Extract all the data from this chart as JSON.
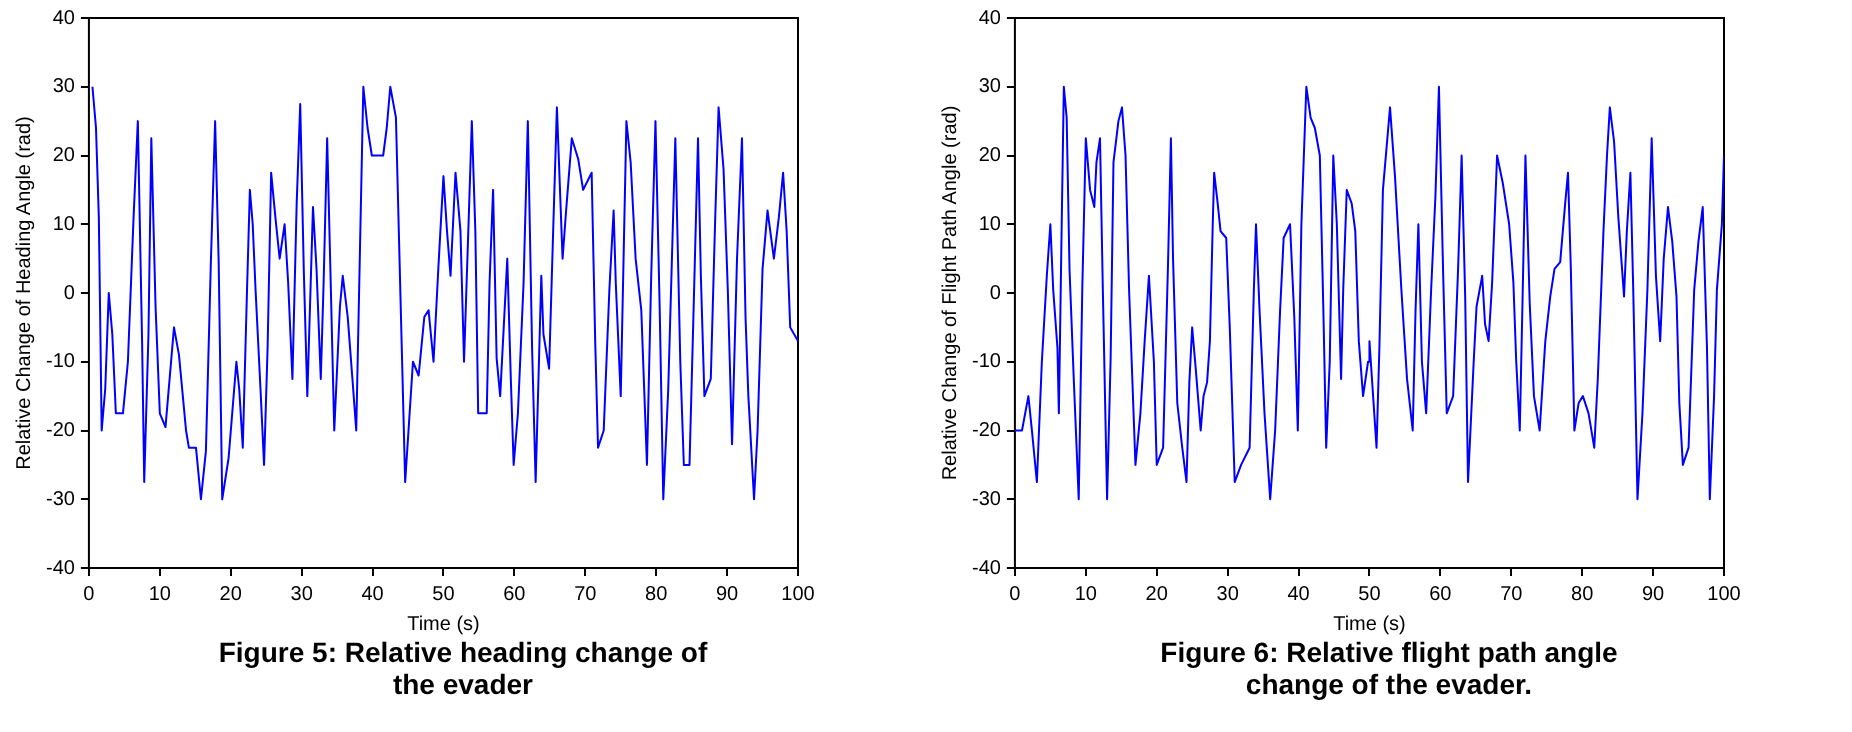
{
  "chart_data": [
    {
      "type": "line",
      "title": "Figure 5: Relative heading change of the evader",
      "xlabel": "Time (s)",
      "ylabel": "Relative Change of Heading Angle (rad)",
      "xlim": [
        0,
        100
      ],
      "xticks": [
        0,
        10,
        20,
        30,
        40,
        50,
        60,
        70,
        80,
        90,
        100
      ],
      "ylim": [
        -40,
        40
      ],
      "yticks": [
        -40,
        -30,
        -20,
        -10,
        0,
        10,
        20,
        30,
        40
      ],
      "grid": false,
      "legend": false,
      "marker": "none",
      "line_style": "solid",
      "series": [
        {
          "color": "#0000ff",
          "x": [
            0.5,
            1,
            1.4,
            1.8,
            2.3,
            2.8,
            3.3,
            3.8,
            4.8,
            5.5,
            6.3,
            6.9,
            7.5,
            7.8,
            8.4,
            8.8,
            9.4,
            10,
            10.8,
            12,
            12.7,
            13.7,
            14.1,
            15.1,
            15.8,
            16.5,
            17.2,
            17.8,
            18.3,
            18.8,
            19.7,
            20.8,
            21.2,
            21.7,
            22.3,
            22.7,
            23.1,
            23.5,
            24.2,
            24.7,
            25.2,
            25.7,
            26.3,
            26.9,
            27.6,
            28.1,
            28.7,
            29.3,
            29.8,
            30.3,
            30.8,
            31.6,
            32.1,
            32.7,
            33.1,
            33.6,
            34.1,
            34.6,
            35.4,
            35.8,
            36.5,
            37.2,
            37.7,
            38.1,
            38.7,
            39.3,
            39.9,
            41.5,
            42,
            42.5,
            43.3,
            44.6,
            45.7,
            46.5,
            47.3,
            47.9,
            48.6,
            49.3,
            50,
            50.5,
            51,
            51.7,
            52.4,
            52.9,
            53.6,
            54,
            54.5,
            54.9,
            56.1,
            56.5,
            57,
            57.5,
            58,
            59,
            59.5,
            59.9,
            60.5,
            61.3,
            61.9,
            62.5,
            63,
            63.8,
            64.1,
            64.9,
            65.5,
            66,
            66.8,
            67.3,
            68.1,
            69,
            69.7,
            70.9,
            71.4,
            71.8,
            72.6,
            73.4,
            74,
            74.3,
            75,
            75.8,
            76.4,
            77.1,
            77.9,
            78.7,
            79.3,
            79.9,
            80.5,
            81,
            81.7,
            82.7,
            83.4,
            83.9,
            84.7,
            85.3,
            85.9,
            86.3,
            86.8,
            87.7,
            88.3,
            88.8,
            89.5,
            90.1,
            90.7,
            91.4,
            92.1,
            92.6,
            93,
            93.8,
            94.3,
            95,
            95.7,
            96.6,
            97.3,
            97.9,
            98.4,
            98.9,
            100
          ],
          "values": [
            30,
            24,
            11,
            -20,
            -14,
            0,
            -6,
            -17.5,
            -17.5,
            -10,
            11,
            25,
            -7,
            -27.5,
            -6,
            22.5,
            -2,
            -17.5,
            -19.5,
            -5,
            -9,
            -20,
            -22.5,
            -22.5,
            -30,
            -23,
            4.5,
            25,
            4.5,
            -30,
            -24,
            -10,
            -14,
            -22.5,
            0.5,
            15,
            10,
            0.5,
            -14,
            -25,
            -8,
            17.5,
            11,
            5,
            10,
            1.5,
            -12.5,
            13,
            27.5,
            3.5,
            -15,
            12.5,
            3.5,
            -12.5,
            1.5,
            22.5,
            1.5,
            -20,
            -2,
            2.5,
            -3.5,
            -13,
            -20,
            0,
            30,
            24,
            20,
            20,
            24,
            30,
            25.5,
            -27.5,
            -10,
            -12,
            -3.5,
            -2.5,
            -10,
            4,
            17,
            9,
            2.5,
            17.5,
            9,
            -10,
            12,
            25,
            9,
            -17.5,
            -17.5,
            1.5,
            15,
            -9.5,
            -15,
            5,
            -12.5,
            -25,
            -17.5,
            1.5,
            25,
            -8,
            -27.5,
            2.5,
            -6,
            -11,
            10,
            27,
            5,
            12,
            22.5,
            19.5,
            15,
            17.5,
            -7,
            -22.5,
            -20,
            0.5,
            12,
            1.5,
            -15,
            25,
            19,
            5,
            -2.5,
            -25,
            2.5,
            25,
            -2.5,
            -30,
            -14,
            22.5,
            -10,
            -25,
            -25,
            -1.5,
            22.5,
            2.5,
            -15,
            -12.5,
            10,
            27,
            18,
            0.5,
            -22,
            5,
            22.5,
            -3.5,
            -15,
            -30,
            -20,
            3.5,
            12,
            5,
            11,
            17.5,
            9,
            -5,
            -7
          ]
        }
      ]
    },
    {
      "type": "line",
      "title": "Figure 6: Relative flight path angle change of the evader.",
      "xlabel": "Time (s)",
      "ylabel": "Relative Change of Flight Path Angle (rad)",
      "xlim": [
        0,
        100
      ],
      "xticks": [
        0,
        10,
        20,
        30,
        40,
        50,
        60,
        70,
        80,
        90,
        100
      ],
      "ylim": [
        -40,
        40
      ],
      "yticks": [
        -40,
        -30,
        -20,
        -10,
        0,
        10,
        20,
        30,
        40
      ],
      "grid": false,
      "legend": false,
      "marker": "none",
      "line_style": "solid",
      "series": [
        {
          "color": "#0000ff",
          "x": [
            0,
            1,
            1.9,
            2.4,
            3.1,
            3.8,
            4.5,
            5,
            5.4,
            6,
            6.2,
            6.6,
            6.9,
            7.3,
            7.7,
            8.3,
            9,
            9.5,
            10,
            10.6,
            11.2,
            11.5,
            12,
            12.4,
            13,
            13.5,
            13.9,
            14.6,
            15.1,
            15.6,
            16.1,
            17,
            17.7,
            18.3,
            18.9,
            19.6,
            20,
            20.9,
            21.6,
            22,
            22.3,
            22.9,
            23.6,
            24.2,
            24.6,
            25,
            25.5,
            26.2,
            26.6,
            27.1,
            27.5,
            27.9,
            28.1,
            28.6,
            29,
            29.8,
            30.3,
            31,
            31.9,
            33.1,
            33.7,
            34,
            34.5,
            35.2,
            36,
            36.7,
            37.4,
            37.9,
            38.8,
            39.4,
            39.9,
            40.4,
            41.1,
            41.7,
            42.3,
            43,
            43.5,
            43.9,
            44.4,
            44.9,
            45.4,
            46,
            46.3,
            46.8,
            47.5,
            48,
            48.5,
            49.1,
            49.8,
            50,
            51,
            51.4,
            51.9,
            52.9,
            53.6,
            54.5,
            55.3,
            56.1,
            56.5,
            56.9,
            57.4,
            58,
            58.7,
            59.3,
            59.8,
            60.4,
            60.9,
            61.8,
            62.5,
            63,
            63.5,
            63.9,
            64.7,
            65.1,
            65.9,
            66.3,
            66.8,
            67.3,
            68,
            68.8,
            69.7,
            70.3,
            70.7,
            71.2,
            71.6,
            72,
            72.6,
            73.2,
            74,
            74.8,
            75.5,
            76.1,
            76.9,
            77.6,
            78,
            78.4,
            78.9,
            79.5,
            80.1,
            80.9,
            81.7,
            82.2,
            83,
            83.5,
            83.9,
            84.5,
            85.1,
            85.9,
            86.3,
            86.8,
            87.2,
            87.8,
            88.5,
            89.2,
            89.8,
            90.4,
            91,
            91.5,
            92.1,
            92.7,
            93.3,
            93.7,
            94.2,
            95,
            95.8,
            96.4,
            97,
            97.6,
            98,
            98.6,
            99,
            99.7,
            100
          ],
          "values": [
            -20,
            -20,
            -15,
            -20,
            -27.5,
            -10,
            2.5,
            10,
            0.5,
            -8,
            -17.5,
            10,
            30,
            25.5,
            3.5,
            -12.5,
            -30,
            0.5,
            22.5,
            15,
            12.5,
            19,
            22.5,
            0.5,
            -30,
            -9.5,
            19,
            25,
            27,
            20,
            0.5,
            -25,
            -17.5,
            -7,
            2.5,
            -10,
            -25,
            -22.5,
            4.5,
            22.5,
            5,
            -16,
            -22.5,
            -27.5,
            -13,
            -5,
            -11,
            -20,
            -15,
            -13,
            -7,
            10,
            17.5,
            13,
            9,
            8,
            -5,
            -27.5,
            -25,
            -22.5,
            0.5,
            10,
            -2.5,
            -17.5,
            -30,
            -20,
            -2.5,
            8,
            10,
            -3.5,
            -20,
            10,
            30,
            25.5,
            24,
            20,
            -2.5,
            -22.5,
            -10,
            20,
            10,
            -12.5,
            0.5,
            15,
            13,
            9,
            -7,
            -15,
            -10,
            -7,
            -22.5,
            -8,
            15,
            27,
            17,
            0.5,
            -12.5,
            -20,
            -2.5,
            10,
            -10,
            -17.5,
            0.5,
            14,
            30,
            2.5,
            -17.5,
            -15,
            3.5,
            20,
            -0.5,
            -27.5,
            -10,
            -2,
            2.5,
            -4.5,
            -7,
            1.5,
            20,
            16,
            10,
            1.5,
            -10,
            -20,
            -0.5,
            20,
            -1.5,
            -15,
            -20,
            -7,
            -0.5,
            3.5,
            4.5,
            13,
            17.5,
            3.5,
            -20,
            -16,
            -15,
            -17.5,
            -22.5,
            -12.5,
            9,
            20,
            27,
            22,
            11,
            -0.5,
            9,
            17.5,
            0.5,
            -30,
            -17.5,
            0.5,
            22.5,
            2.5,
            -7,
            5,
            12.5,
            7.5,
            -0.5,
            -16,
            -25,
            -22.5,
            0.5,
            7.5,
            12.5,
            -8,
            -30,
            -15,
            0.5,
            10,
            20
          ]
        }
      ]
    }
  ]
}
